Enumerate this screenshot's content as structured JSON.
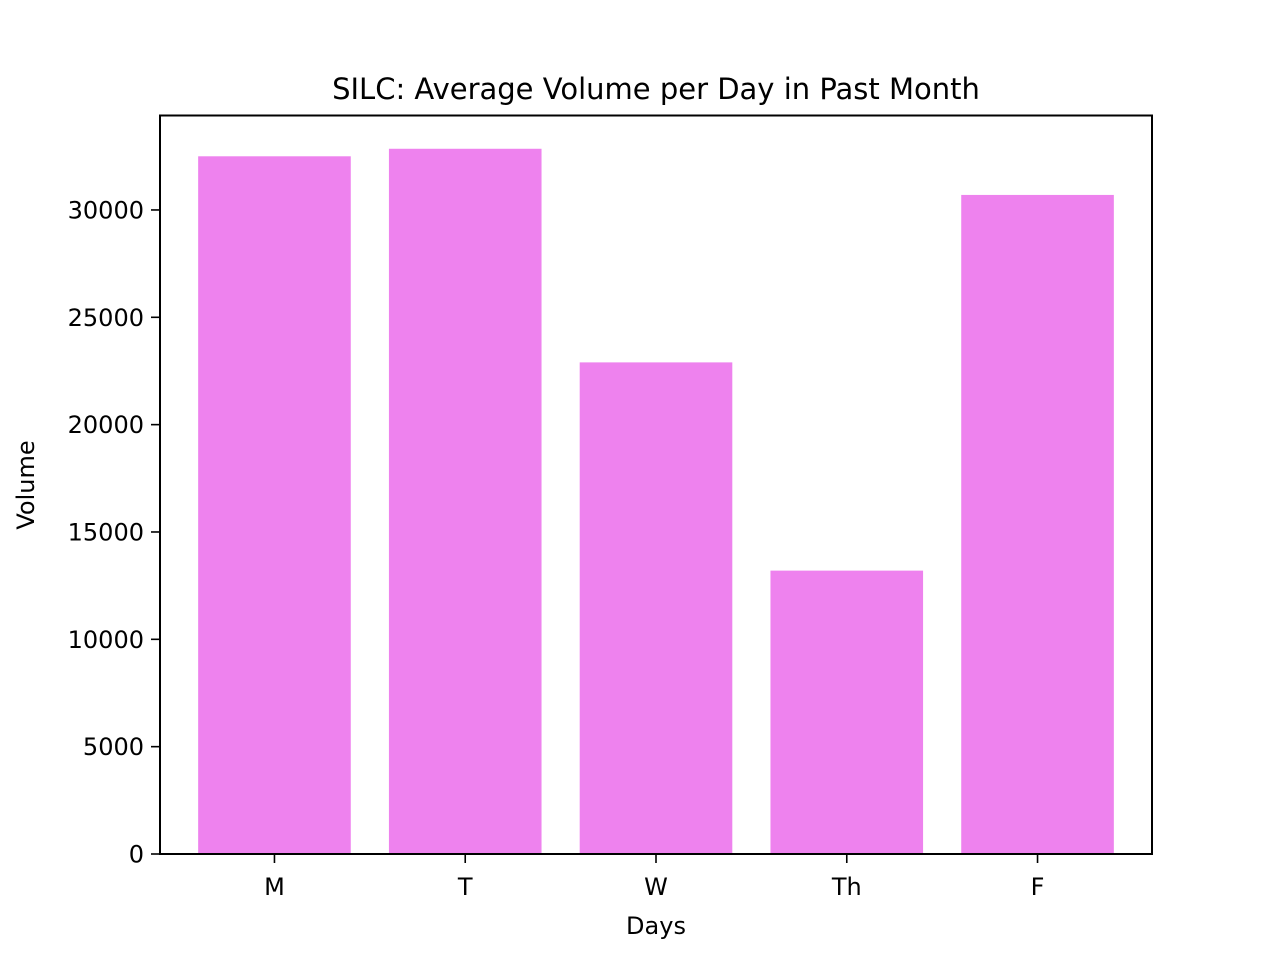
{
  "chart_data": {
    "type": "bar",
    "title": "SILC: Average Volume per Day in Past Month",
    "xlabel": "Days",
    "ylabel": "Volume",
    "categories": [
      "M",
      "T",
      "W",
      "Th",
      "F"
    ],
    "values": [
      32500,
      32850,
      22900,
      13200,
      30700
    ],
    "ylim": [
      0,
      34400
    ],
    "yticks": [
      0,
      5000,
      10000,
      15000,
      20000,
      25000,
      30000
    ],
    "ytick_labels": [
      "0",
      "5000",
      "10000",
      "15000",
      "20000",
      "25000",
      "30000"
    ],
    "bar_color": "#ee82ee",
    "grid": false,
    "legend": "none"
  }
}
